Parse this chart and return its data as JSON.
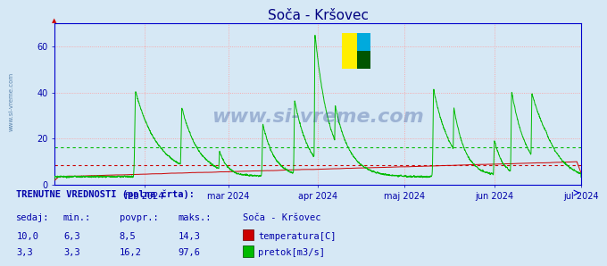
{
  "title": "Soča - Kršovec",
  "title_color": "#000080",
  "fig_bg_color": "#d6e8f5",
  "plot_bg_color": "#d6e8f5",
  "temp_color": "#cc0000",
  "flow_color": "#00bb00",
  "temp_avg_value": 8.5,
  "flow_avg_value": 16.2,
  "axis_color": "#0000cc",
  "tick_color": "#0000aa",
  "grid_color": "#ff9999",
  "watermark": "www.si-vreme.com",
  "watermark_color": "#1a3a8a",
  "watermark_alpha": 0.3,
  "sidebar_text": "www.si-vreme.com",
  "sidebar_color": "#3a6a9a",
  "ylim": [
    0,
    70
  ],
  "xticklabels": [
    "feb 2024",
    "mar 2024",
    "apr 2024",
    "maj 2024",
    "jun 2024",
    "jul 2024"
  ],
  "xtick_positions": [
    31,
    60,
    91,
    121,
    152,
    182
  ],
  "currently_text": "TRENUTNE VREDNOSTI (polna črta):",
  "table_headers": [
    "sedaj:",
    "min.:",
    "povpr.:",
    "maks.:",
    "Soča - Kršovec"
  ],
  "table_row1": [
    "10,0",
    "6,3",
    "8,5",
    "14,3"
  ],
  "table_row2": [
    "3,3",
    "3,3",
    "16,2",
    "97,6"
  ],
  "legend_label_temp": "temperatura[C]",
  "legend_label_flow": "pretok[m3/s]",
  "station_name": "Soča - Kršovec"
}
